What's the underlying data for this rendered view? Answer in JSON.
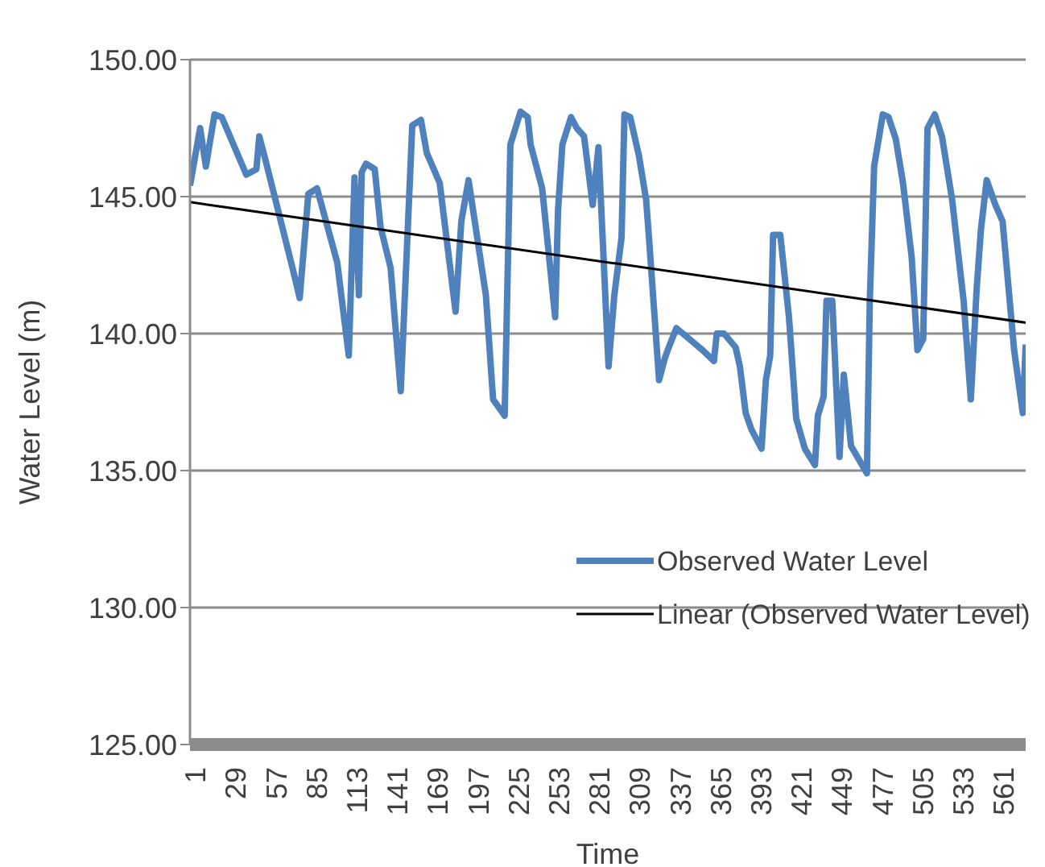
{
  "chart_data": {
    "type": "line",
    "xlabel": "Time",
    "ylabel": "Water Level (m)",
    "xlim": [
      -3,
      576
    ],
    "xticks": [
      1,
      29,
      57,
      85,
      113,
      141,
      169,
      197,
      225,
      253,
      281,
      309,
      337,
      365,
      393,
      421,
      449,
      477,
      505,
      533,
      561
    ],
    "ylim": [
      125,
      150
    ],
    "yticks": [
      {
        "value": 125,
        "label": "125.00"
      },
      {
        "value": 130,
        "label": "130.00"
      },
      {
        "value": 135,
        "label": "135.00"
      },
      {
        "value": 140,
        "label": "140.00"
      },
      {
        "value": 145,
        "label": "145.00"
      },
      {
        "value": 150,
        "label": "150.00"
      }
    ],
    "grid": "y",
    "legend": "right",
    "marker": "none",
    "line_style": "solid",
    "series": [
      {
        "name": "Observed Water Level",
        "color": "#4f81bd",
        "x": [
          -3,
          4,
          8,
          14,
          19,
          36,
          43,
          45,
          49,
          68,
          73,
          79,
          85,
          99,
          107,
          111,
          114,
          116,
          119,
          125,
          129,
          136,
          143,
          151,
          157,
          161,
          170,
          181,
          185,
          190,
          202,
          207,
          215,
          219,
          226,
          231,
          233,
          241,
          250,
          252,
          255,
          261,
          265,
          270,
          276,
          280,
          287,
          291,
          296,
          298,
          302,
          308,
          313,
          315,
          322,
          326,
          328,
          334,
          343,
          352,
          360,
          362,
          367,
          375,
          378,
          382,
          386,
          393,
          396,
          399,
          401,
          406,
          412,
          417,
          423,
          430,
          432,
          436,
          438,
          442,
          447,
          450,
          455,
          466,
          468,
          471,
          477,
          481,
          486,
          491,
          497,
          501,
          505,
          508,
          513,
          518,
          525,
          533,
          538,
          542,
          545,
          549,
          555,
          560,
          568,
          574,
          576
        ],
        "values": [
          145.4,
          147.5,
          146.1,
          148.0,
          147.9,
          145.8,
          146.0,
          147.2,
          146.4,
          142.4,
          141.3,
          145.1,
          145.3,
          142.6,
          139.2,
          145.7,
          141.4,
          145.9,
          146.2,
          146.0,
          143.9,
          142.4,
          137.9,
          147.6,
          147.8,
          146.6,
          145.5,
          140.8,
          144.1,
          145.6,
          141.4,
          137.6,
          137.0,
          146.9,
          148.1,
          147.9,
          146.9,
          145.3,
          140.6,
          144.5,
          146.9,
          147.9,
          147.5,
          147.2,
          144.7,
          146.8,
          138.8,
          141.4,
          143.5,
          148.0,
          147.9,
          146.5,
          144.9,
          143.5,
          138.3,
          139.1,
          139.4,
          140.2,
          139.8,
          139.4,
          139.0,
          140.0,
          140.0,
          139.5,
          138.8,
          137.1,
          136.5,
          135.8,
          138.3,
          139.2,
          143.6,
          143.6,
          140.6,
          136.9,
          135.8,
          135.2,
          137.0,
          137.7,
          141.2,
          141.2,
          135.5,
          138.5,
          135.9,
          134.9,
          141.2,
          146.1,
          148.0,
          147.9,
          147.1,
          145.5,
          142.8,
          139.4,
          139.8,
          147.5,
          148.0,
          147.2,
          144.9,
          141.2,
          137.6,
          141.6,
          143.8,
          145.6,
          144.7,
          144.1,
          139.4,
          137.1,
          139.6
        ]
      },
      {
        "name": "Linear (Observed Water Level)",
        "color": "#000000",
        "x": [
          -3,
          576
        ],
        "values": [
          144.8,
          140.4
        ]
      }
    ]
  }
}
